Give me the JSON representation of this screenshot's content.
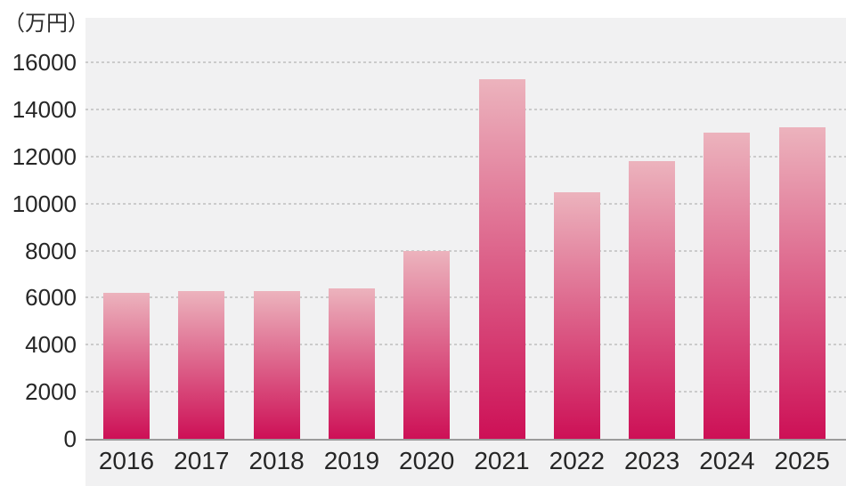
{
  "header": {
    "unit_label": "（万円）"
  },
  "colors": {
    "bar_top": "#ecb3bd",
    "bar_bottom": "#cd1056",
    "plot_background": "#f1f1f2",
    "gridline": "#cbcbcb",
    "axis_line": "#9b9b9b",
    "text": "#262626"
  },
  "chart_data": {
    "type": "bar",
    "title": "",
    "xlabel": "",
    "ylabel": "（万円）",
    "unit": "万円",
    "categories": [
      "2016",
      "2017",
      "2018",
      "2019",
      "2020",
      "2021",
      "2022",
      "2023",
      "2024",
      "2025"
    ],
    "values": [
      6200,
      6300,
      6300,
      6400,
      8000,
      15300,
      10500,
      11800,
      13000,
      13250
    ],
    "yticks": [
      0,
      2000,
      4000,
      6000,
      8000,
      10000,
      12000,
      14000,
      16000
    ],
    "ylim": [
      0,
      17900
    ],
    "grid": "horizontal-dashed",
    "legend_position": "none"
  }
}
